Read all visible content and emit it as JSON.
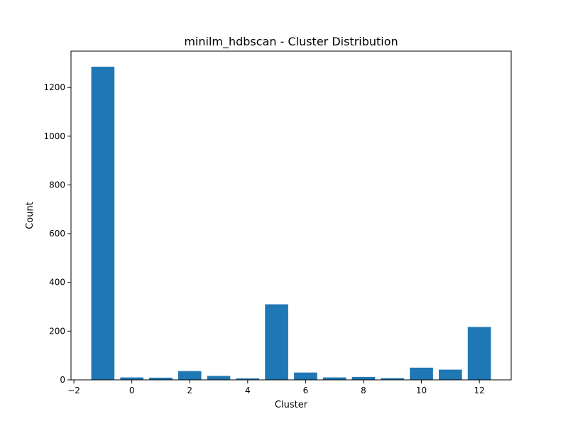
{
  "chart_data": {
    "type": "bar",
    "title": "minilm_hdbscan - Cluster Distribution",
    "xlabel": "Cluster",
    "ylabel": "Count",
    "x": [
      -1,
      0,
      1,
      2,
      3,
      4,
      5,
      6,
      7,
      8,
      9,
      10,
      11,
      12
    ],
    "values": [
      1285,
      10,
      9,
      36,
      16,
      6,
      310,
      30,
      10,
      12,
      7,
      50,
      42,
      217
    ],
    "xlim": [
      -2.1,
      13.1
    ],
    "ylim": [
      0,
      1349
    ],
    "xticks": [
      -2,
      0,
      2,
      4,
      6,
      8,
      10,
      12
    ],
    "xtick_labels": [
      "−2",
      "0",
      "2",
      "4",
      "6",
      "8",
      "10",
      "12"
    ],
    "yticks": [
      0,
      200,
      400,
      600,
      800,
      1000,
      1200
    ],
    "ytick_labels": [
      "0",
      "200",
      "400",
      "600",
      "800",
      "1000",
      "1200"
    ],
    "bar_color": "#1f77b4",
    "grid": false,
    "legend": "none"
  }
}
